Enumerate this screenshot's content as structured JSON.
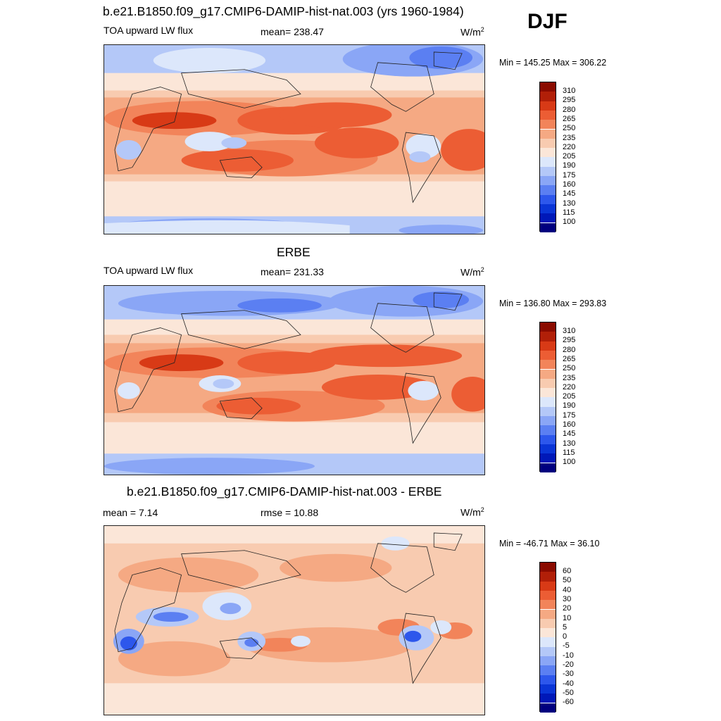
{
  "season": "DJF",
  "colors": {
    "abs_scale": [
      "#00007f",
      "#0018b8",
      "#0a35d6",
      "#2d57ec",
      "#5b7ff2",
      "#8aa6f6",
      "#b4c8f8",
      "#dce7fb",
      "#fbe6d8",
      "#f8cbb0",
      "#f5a983",
      "#f2845a",
      "#ec5d34",
      "#d83a16",
      "#b11f08",
      "#8a0b00"
    ],
    "diff_scale": [
      "#00007f",
      "#0018b8",
      "#0a35d6",
      "#2d57ec",
      "#5b7ff2",
      "#8aa6f6",
      "#b4c8f8",
      "#dce7fb",
      "#fbe6d8",
      "#f8cbb0",
      "#f5a983",
      "#f2845a",
      "#ec5d34",
      "#d83a16",
      "#b11f08",
      "#8a0b00"
    ]
  },
  "panels": [
    {
      "title": "b.e21.B1850.f09_g17.CMIP6-DAMIP-hist-nat.003 (yrs 1960-1984)",
      "left_label": "TOA upward LW flux",
      "center_label": "mean= 238.47",
      "units": "W/m",
      "units_sup": "2",
      "minmax": "Min = 145.25 Max = 306.22",
      "colorbar_labels": [
        "310",
        "295",
        "280",
        "265",
        "250",
        "235",
        "220",
        "205",
        "190",
        "175",
        "160",
        "145",
        "130",
        "115",
        "100"
      ]
    },
    {
      "title": "ERBE",
      "left_label": "TOA upward LW flux",
      "center_label": "mean= 231.33",
      "units": "W/m",
      "units_sup": "2",
      "minmax": "Min = 136.80 Max = 293.83",
      "colorbar_labels": [
        "310",
        "295",
        "280",
        "265",
        "250",
        "235",
        "220",
        "205",
        "190",
        "175",
        "160",
        "145",
        "130",
        "115",
        "100"
      ]
    },
    {
      "title": "b.e21.B1850.f09_g17.CMIP6-DAMIP-hist-nat.003 - ERBE",
      "left_label": "mean =   7.14",
      "center_label": "rmse =  10.88",
      "units": "W/m",
      "units_sup": "2",
      "minmax": "Min = -46.71 Max =  36.10",
      "colorbar_labels": [
        "60",
        "50",
        "40",
        "30",
        "20",
        "10",
        "5",
        "0",
        "-5",
        "-10",
        "-20",
        "-30",
        "-40",
        "-50",
        "-60"
      ]
    }
  ]
}
